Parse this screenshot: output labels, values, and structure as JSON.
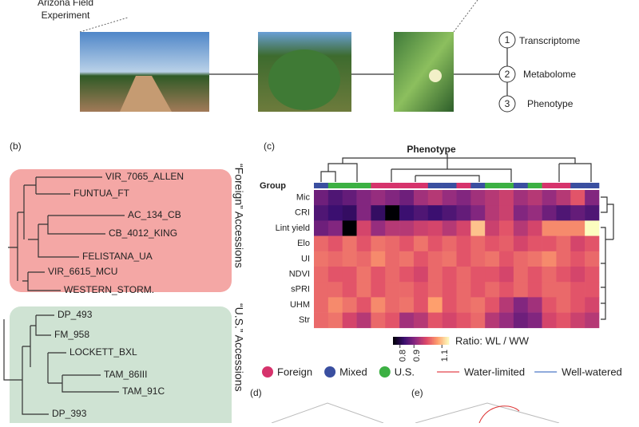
{
  "header": {
    "site": [
      "Arizona Field",
      "Experiment"
    ],
    "omics": [
      "Transcriptome",
      "Metabolome",
      "Phenotype"
    ],
    "omics_numbers": [
      "1",
      "2",
      "3"
    ]
  },
  "panels": {
    "b": "(b)",
    "c": "(c)",
    "d": "(d)",
    "e": "(e)"
  },
  "tree": {
    "foreign_label": "“Foreign” Accessions",
    "us_label": "“U.S.” Accessions",
    "foreign_leaves": [
      "VIR_7065_ALLEN",
      "FUNTUA_FT",
      "AC_134_CB",
      "CB_4012_KING",
      "FELISTANA_UA",
      "VIR_6615_MCU",
      "WESTERN_STORM."
    ],
    "us_leaves": [
      "DP_493",
      "FM_958",
      "LOCKETT_BXL",
      "TAM_86III",
      "TAM_91C",
      "DP_393"
    ]
  },
  "heatmap": {
    "title": "Phenotype",
    "group_label": "Group",
    "colormap": [
      "#000004",
      "#3b0f70",
      "#8c2981",
      "#de4968",
      "#fe9f6d",
      "#fcfdbf"
    ],
    "clim": [
      0.75,
      1.15
    ],
    "ticks": [
      0.8,
      0.9,
      1.1
    ],
    "colorbar_label": "Ratio: WL / WW",
    "column_groups": [
      1,
      2,
      2,
      2,
      0,
      0,
      0,
      0,
      1,
      1,
      0,
      1,
      2,
      2,
      1,
      2,
      0,
      0,
      1,
      1
    ],
    "rows": [
      {
        "name": "Mic",
        "values": [
          0.88,
          0.85,
          0.87,
          0.9,
          0.92,
          0.9,
          0.88,
          0.93,
          0.95,
          0.92,
          0.9,
          0.93,
          0.95,
          0.97,
          0.93,
          0.95,
          0.92,
          0.95,
          1.0,
          0.9
        ]
      },
      {
        "name": "CRI",
        "values": [
          0.85,
          0.83,
          0.82,
          0.9,
          0.82,
          0.75,
          0.83,
          0.85,
          0.83,
          0.85,
          0.87,
          0.9,
          0.95,
          0.97,
          0.9,
          0.92,
          0.88,
          0.85,
          0.87,
          0.85
        ]
      },
      {
        "name": "Lint yield",
        "values": [
          0.88,
          0.9,
          0.75,
          0.98,
          0.92,
          0.95,
          0.95,
          0.97,
          0.98,
          0.95,
          0.98,
          1.1,
          0.97,
          1.0,
          0.95,
          0.98,
          1.05,
          1.05,
          1.05,
          1.15
        ]
      },
      {
        "name": "Elo",
        "values": [
          1.02,
          1.0,
          1.03,
          1.0,
          1.03,
          1.02,
          1.0,
          1.03,
          1.0,
          1.02,
          1.0,
          1.02,
          1.0,
          1.01,
          0.98,
          1.0,
          1.0,
          1.02,
          0.98,
          1.0
        ]
      },
      {
        "name": "UI",
        "values": [
          1.03,
          1.02,
          1.03,
          1.02,
          1.05,
          1.02,
          1.03,
          1.0,
          1.02,
          1.03,
          1.0,
          1.02,
          1.03,
          1.0,
          1.02,
          1.03,
          1.05,
          1.02,
          1.0,
          1.02
        ]
      },
      {
        "name": "NDVI",
        "values": [
          1.02,
          1.0,
          1.0,
          1.03,
          1.0,
          1.02,
          1.0,
          0.98,
          1.02,
          1.0,
          1.02,
          1.0,
          1.0,
          0.98,
          1.02,
          1.0,
          1.02,
          1.0,
          0.98,
          1.0
        ]
      },
      {
        "name": "sPRI",
        "values": [
          1.02,
          1.02,
          1.0,
          1.03,
          1.0,
          1.02,
          1.02,
          1.0,
          1.02,
          1.0,
          1.02,
          1.0,
          1.02,
          1.0,
          1.02,
          1.0,
          1.02,
          1.02,
          1.0,
          1.0
        ]
      },
      {
        "name": "UHM",
        "values": [
          1.02,
          1.05,
          1.03,
          1.0,
          1.05,
          1.02,
          1.03,
          1.0,
          1.07,
          1.0,
          1.02,
          1.03,
          1.0,
          0.95,
          0.9,
          0.93,
          1.0,
          1.02,
          1.0,
          0.98
        ]
      },
      {
        "name": "Str",
        "values": [
          1.02,
          1.03,
          0.98,
          0.95,
          1.02,
          1.0,
          0.93,
          0.95,
          1.0,
          0.98,
          1.0,
          1.02,
          0.95,
          0.92,
          0.88,
          0.9,
          0.98,
          1.0,
          0.97,
          0.95
        ]
      }
    ]
  },
  "legend": {
    "groups": [
      {
        "name": "Foreign",
        "color": "#d6336c"
      },
      {
        "name": "Mixed",
        "color": "#3a4fa0"
      },
      {
        "name": "U.S.",
        "color": "#3cb043"
      }
    ],
    "lines": [
      {
        "name": "Water-limited",
        "color": "#e8646a"
      },
      {
        "name": "Well-watered",
        "color": "#6b8fd0"
      }
    ]
  }
}
